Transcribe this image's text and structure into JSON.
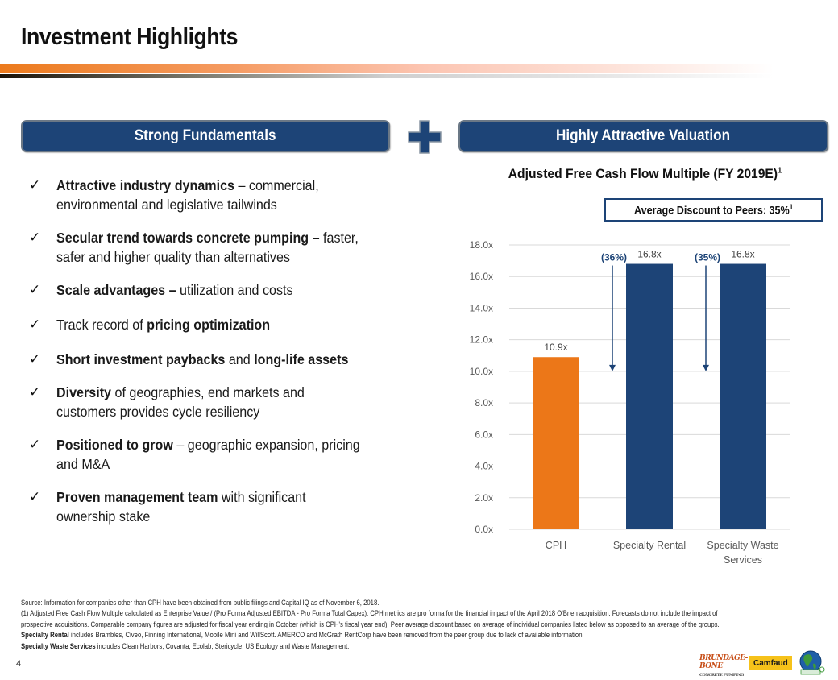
{
  "page": {
    "title": "Investment Highlights",
    "page_number": "4"
  },
  "left_panel": {
    "header": "Strong Fundamentals",
    "bullets": [
      {
        "lines": [
          [
            {
              "t": "Attractive industry dynamics",
              "b": true
            },
            {
              "t": " – commercial,",
              "b": false
            }
          ],
          [
            {
              "t": "environmental and legislative tailwinds",
              "b": false
            }
          ]
        ]
      },
      {
        "lines": [
          [
            {
              "t": "Secular trend towards concrete pumping –",
              "b": true
            },
            {
              "t": " faster,",
              "b": false
            }
          ],
          [
            {
              "t": "safer and higher quality than alternatives",
              "b": false
            }
          ]
        ]
      },
      {
        "lines": [
          [
            {
              "t": "Scale advantages –",
              "b": true
            },
            {
              "t": " utilization and costs",
              "b": false
            }
          ]
        ]
      },
      {
        "lines": [
          [
            {
              "t": "Track record of ",
              "b": false
            },
            {
              "t": "pricing optimization",
              "b": true
            }
          ]
        ]
      },
      {
        "lines": [
          [
            {
              "t": "Short investment paybacks",
              "b": true
            },
            {
              "t": " and ",
              "b": false
            },
            {
              "t": "long-life assets",
              "b": true
            }
          ]
        ]
      },
      {
        "lines": [
          [
            {
              "t": "Diversity",
              "b": true
            },
            {
              "t": " of geographies, end markets and",
              "b": false
            }
          ],
          [
            {
              "t": "customers provides cycle resiliency",
              "b": false
            }
          ]
        ]
      },
      {
        "lines": [
          [
            {
              "t": "Positioned to grow",
              "b": true
            },
            {
              "t": " – geographic expansion, pricing",
              "b": false
            }
          ],
          [
            {
              "t": "and M&A",
              "b": false
            }
          ]
        ]
      },
      {
        "lines": [
          [
            {
              "t": "Proven management team",
              "b": true
            },
            {
              "t": " with significant",
              "b": false
            }
          ],
          [
            {
              "t": "ownership stake",
              "b": false
            }
          ]
        ]
      }
    ],
    "check_icon": "✓"
  },
  "plus_icon": "plus-icon",
  "right_panel": {
    "header": "Highly Attractive Valuation",
    "chart_title": "Adjusted Free Cash Flow Multiple (FY 2019E)",
    "chart_title_footnote": "1",
    "discount_label": "Average Discount to Peers: 35%",
    "discount_footnote": "1"
  },
  "chart_data": {
    "type": "bar",
    "title": "Adjusted Free Cash Flow Multiple (FY 2019E)",
    "xlabel": "",
    "ylabel": "",
    "categories": [
      "CPH",
      "Specialty Rental",
      "Specialty Waste Services"
    ],
    "category_lines": [
      [
        "CPH"
      ],
      [
        "Specialty Rental"
      ],
      [
        "Specialty Waste",
        "Services"
      ]
    ],
    "values": [
      10.9,
      16.8,
      16.8
    ],
    "value_labels": [
      "10.9x",
      "16.8x",
      "16.8x"
    ],
    "bar_colors": [
      "#ec7718",
      "#1d4477",
      "#1d4477"
    ],
    "ylim": [
      0,
      18
    ],
    "yticks": [
      0,
      2,
      4,
      6,
      8,
      10,
      12,
      14,
      16,
      18
    ],
    "ytick_labels": [
      "0.0x",
      "2.0x",
      "4.0x",
      "6.0x",
      "8.0x",
      "10.0x",
      "12.0x",
      "14.0x",
      "16.0x",
      "18.0x"
    ],
    "grid": true,
    "legend": "none",
    "annotations": [
      {
        "text": "(36%)",
        "between": [
          "CPH",
          "Specialty Rental"
        ],
        "arrow_from": 16.8,
        "arrow_to": 10.0,
        "color": "#1d4477"
      },
      {
        "text": "(35%)",
        "between": [
          "Specialty Rental",
          "Specialty Waste Services"
        ],
        "arrow_from": 16.8,
        "arrow_to": 10.0,
        "color": "#1d4477"
      }
    ],
    "gridline_color": "#d9d9d9",
    "tick_color": "#595959"
  },
  "footnotes": {
    "source": "Source: Information for companies other than CPH have been obtained from public filings and Capital IQ as of November 6, 2018.",
    "note1_line1": "(1) Adjusted Free Cash Flow Multiple calculated as Enterprise Value / (Pro Forma Adjusted EBITDA - Pro Forma Total Capex). CPH metrics are pro forma for the financial impact of the April 2018 O'Brien acquisition. Forecasts do not include the impact of",
    "note1_line2": "prospective acquisitions. Comparable company figures are adjusted for fiscal year ending in October (which is CPH's fiscal year end). Peer average discount based on average of individual companies listed below as opposed to an average of the groups.",
    "rental_label": "Specialty Rental",
    "rental_text": " includes Brambles, Civeo, Finning International, Mobile Mini and WillScott. AMERCO and McGrath RentCorp have been removed from the peer group due to lack of available information.",
    "waste_label": "Specialty Waste Services",
    "waste_text": " includes Clean Harbors, Covanta, Ecolab, Stericycle, US Ecology and Waste Management."
  },
  "logos": {
    "brundage_line1": "BRUNDAGE-",
    "brundage_line2": "BONE",
    "brundage_small": "CONCRETE PUMPING",
    "camfaud": "Camfaud",
    "ecoflex": "ECOPAN"
  }
}
